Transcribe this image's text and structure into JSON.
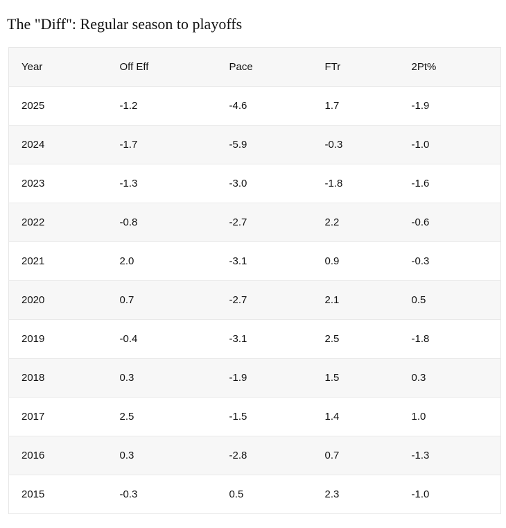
{
  "title": "The \"Diff\": Regular season to playoffs",
  "chart_data": {
    "type": "table",
    "title": "The \"Diff\": Regular season to playoffs",
    "columns": [
      "Year",
      "Off Eff",
      "Pace",
      "FTr",
      "2Pt%"
    ],
    "rows": [
      {
        "year": "2025",
        "values": [
          -1.2,
          -4.6,
          1.7,
          -1.9
        ]
      },
      {
        "year": "2024",
        "values": [
          -1.7,
          -5.9,
          -0.3,
          -1.0
        ]
      },
      {
        "year": "2023",
        "values": [
          -1.3,
          -3.0,
          -1.8,
          -1.6
        ]
      },
      {
        "year": "2022",
        "values": [
          -0.8,
          -2.7,
          2.2,
          -0.6
        ]
      },
      {
        "year": "2021",
        "values": [
          2.0,
          -3.1,
          0.9,
          -0.3
        ]
      },
      {
        "year": "2020",
        "values": [
          0.7,
          -2.7,
          2.1,
          0.5
        ]
      },
      {
        "year": "2019",
        "values": [
          -0.4,
          -3.1,
          2.5,
          -1.8
        ]
      },
      {
        "year": "2018",
        "values": [
          0.3,
          -1.9,
          1.5,
          0.3
        ]
      },
      {
        "year": "2017",
        "values": [
          2.5,
          -1.5,
          1.4,
          1.0
        ]
      },
      {
        "year": "2016",
        "values": [
          0.3,
          -2.8,
          0.7,
          -1.3
        ]
      },
      {
        "year": "2015",
        "values": [
          -0.3,
          0.5,
          2.3,
          -1.0
        ]
      }
    ],
    "layout": {
      "stripe_color": "#f7f7f7",
      "row_background": "#ffffff",
      "separator_color": "#e9e9e9",
      "text_color": "#121212",
      "header_background": "#f7f7f7",
      "value_format": "one_decimal"
    }
  }
}
